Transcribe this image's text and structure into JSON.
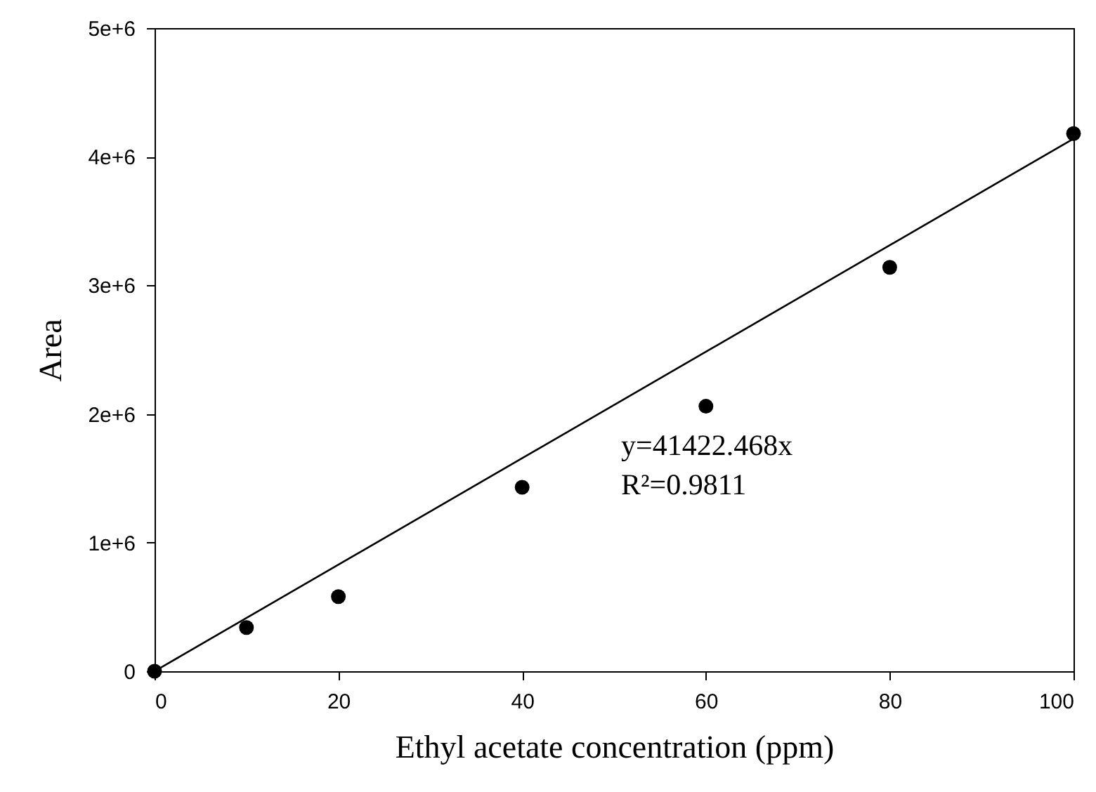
{
  "chart_data": {
    "type": "scatter",
    "xlabel": "Ethyl acetate concentration (ppm)",
    "ylabel": "Area",
    "xlim": [
      0,
      100
    ],
    "xticks": [
      0,
      20,
      40,
      60,
      80,
      100
    ],
    "ylim": [
      0,
      5000000
    ],
    "yticks": [
      {
        "value": 0,
        "label": "0"
      },
      {
        "value": 1000000,
        "label": "1e+6"
      },
      {
        "value": 2000000,
        "label": "2e+6"
      },
      {
        "value": 3000000,
        "label": "3e+6"
      },
      {
        "value": 4000000,
        "label": "4e+6"
      },
      {
        "value": 5000000,
        "label": "5e+6"
      }
    ],
    "series": [
      {
        "marker": "circle",
        "color": "#000000",
        "x": [
          0,
          10,
          20,
          40,
          60,
          80,
          100
        ],
        "values": [
          0,
          340000,
          580000,
          1430000,
          2060000,
          3140000,
          4180000
        ]
      },
      {
        "type": "line",
        "color": "#000000",
        "x": [
          0,
          100
        ],
        "values": [
          0,
          4140000
        ]
      }
    ],
    "annotations": [
      "y=41422.468x",
      "R²=0.9811"
    ]
  }
}
